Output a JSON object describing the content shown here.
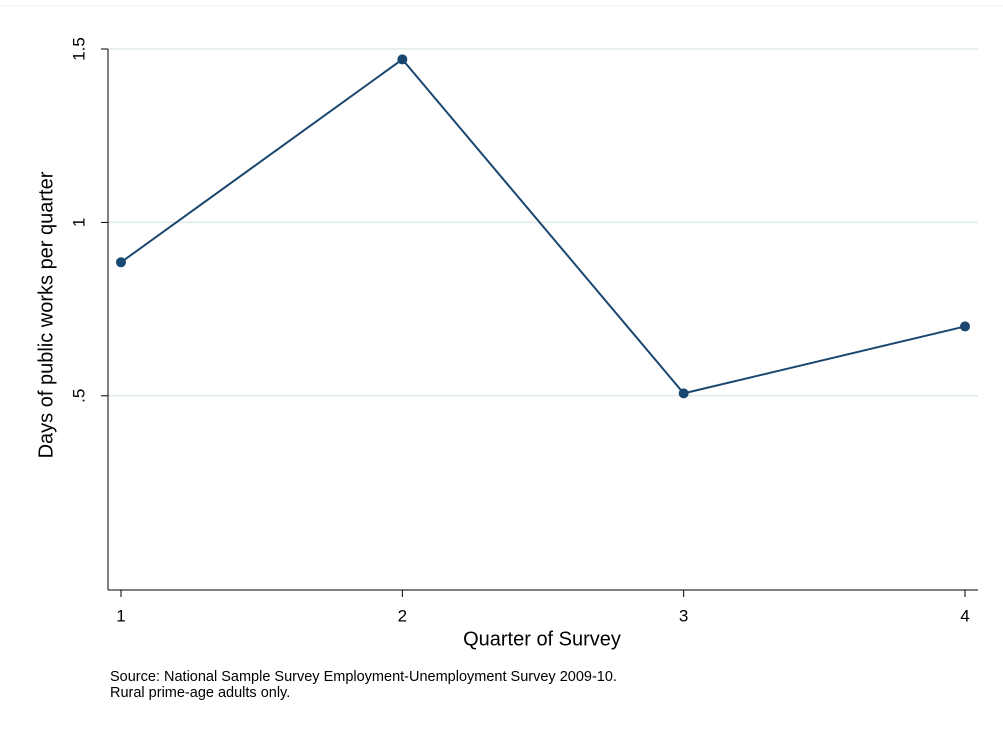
{
  "chart_data": {
    "type": "line",
    "x": [
      1,
      2,
      3,
      4
    ],
    "values": [
      0.885,
      1.47,
      0.507,
      0.7
    ],
    "color": "#1a476f",
    "xlim": [
      1,
      4
    ],
    "xticks": [
      1,
      2,
      3,
      4
    ],
    "ylim": [
      -0.06,
      1.5
    ],
    "yticks": [
      {
        "value": 0.5,
        "label": ".5"
      },
      1,
      1.5
    ],
    "grid": true,
    "xlabel": "Quarter of Survey",
    "ylabel": "Days of public works per quarter",
    "note": [
      "Source: National Sample Survey Employment-Unemployment Survey 2009-10.",
      "Rural prime-age adults only."
    ]
  }
}
